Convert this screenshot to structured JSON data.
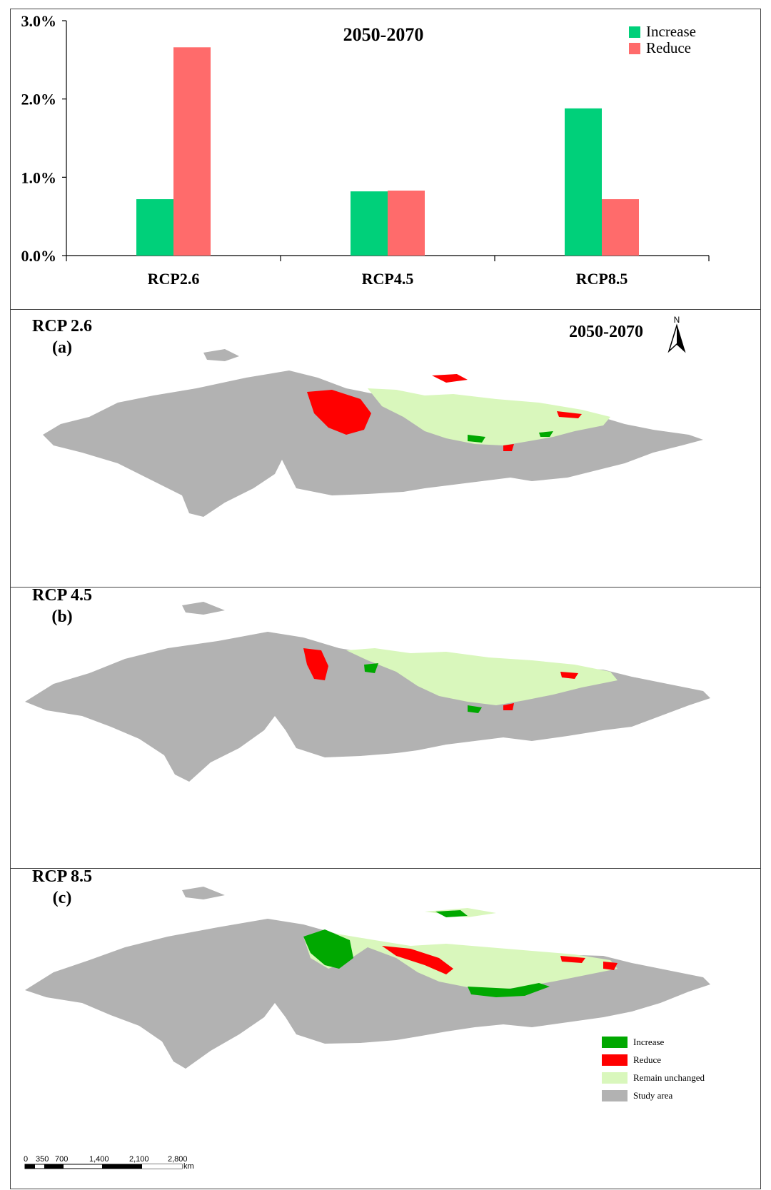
{
  "chart_data": {
    "type": "bar",
    "title": "2050-2070",
    "categories": [
      "RCP2.6",
      "RCP4.5",
      "RCP8.5"
    ],
    "series": [
      {
        "name": "Increase",
        "color": "#00d07a",
        "values": [
          0.72,
          0.82,
          1.88
        ]
      },
      {
        "name": "Reduce",
        "color": "#ff6b6b",
        "values": [
          2.66,
          0.83,
          0.72
        ]
      }
    ],
    "yticks": [
      "0.0%",
      "1.0%",
      "2.0%",
      "3.0%"
    ],
    "ylim": [
      0,
      3.0
    ],
    "legend_position": "top-right",
    "grid": false
  },
  "maps": {
    "period": "2050-2070",
    "north_label": "N",
    "panels": [
      {
        "label": "RCP 2.6",
        "sub": "(a)"
      },
      {
        "label": "RCP 4.5",
        "sub": "(b)"
      },
      {
        "label": "RCP 8.5",
        "sub": "(c)"
      }
    ],
    "legend": [
      {
        "label": "Increase",
        "color": "#00a800"
      },
      {
        "label": "Reduce",
        "color": "#ff0000"
      },
      {
        "label": "Remain unchanged",
        "color": "#d9f7bc"
      },
      {
        "label": "Study area",
        "color": "#b2b2b2"
      }
    ],
    "scalebar": {
      "ticks": [
        "0",
        "350",
        "700",
        "1,400",
        "2,100",
        "2,800"
      ],
      "unit": "km"
    }
  }
}
